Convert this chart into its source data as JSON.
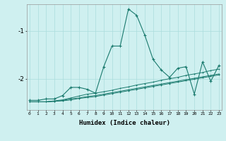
{
  "xlabel": "Humidex (Indice chaleur)",
  "bg_color": "#cff0f0",
  "line_color": "#1a7a6e",
  "grid_color": "#aadcdc",
  "x_ticks": [
    0,
    1,
    2,
    3,
    4,
    5,
    6,
    7,
    8,
    9,
    10,
    11,
    12,
    13,
    14,
    15,
    16,
    17,
    18,
    19,
    20,
    21,
    22,
    23
  ],
  "y_ticks": [
    -1,
    -2
  ],
  "xlim": [
    -0.3,
    23.3
  ],
  "ylim": [
    -2.65,
    -0.45
  ],
  "line1_x": [
    0,
    1,
    2,
    3,
    4,
    5,
    6,
    7,
    8,
    9,
    10,
    11,
    12,
    13,
    14,
    15,
    16,
    17,
    18,
    19,
    20,
    21,
    22,
    23
  ],
  "line1_y": [
    -2.45,
    -2.45,
    -2.42,
    -2.42,
    -2.35,
    -2.18,
    -2.18,
    -2.22,
    -2.3,
    -1.75,
    -1.32,
    -1.32,
    -0.55,
    -0.68,
    -1.1,
    -1.6,
    -1.82,
    -1.97,
    -1.78,
    -1.75,
    -2.32,
    -1.65,
    -2.05,
    -1.72
  ],
  "line2_x": [
    0,
    1,
    2,
    3,
    4,
    5,
    6,
    7,
    8,
    9,
    10,
    11,
    12,
    13,
    14,
    15,
    16,
    17,
    18,
    19,
    20,
    21,
    22,
    23
  ],
  "line2_y": [
    -2.48,
    -2.48,
    -2.48,
    -2.46,
    -2.44,
    -2.4,
    -2.36,
    -2.32,
    -2.3,
    -2.27,
    -2.24,
    -2.2,
    -2.17,
    -2.13,
    -2.1,
    -2.07,
    -2.03,
    -2.0,
    -1.97,
    -1.93,
    -1.9,
    -1.87,
    -1.83,
    -1.8
  ],
  "line3_x": [
    0,
    1,
    2,
    3,
    4,
    5,
    6,
    7,
    8,
    9,
    10,
    11,
    12,
    13,
    14,
    15,
    16,
    17,
    18,
    19,
    20,
    21,
    22,
    23
  ],
  "line3_y": [
    -2.48,
    -2.48,
    -2.48,
    -2.47,
    -2.46,
    -2.44,
    -2.41,
    -2.39,
    -2.37,
    -2.34,
    -2.31,
    -2.28,
    -2.25,
    -2.22,
    -2.19,
    -2.16,
    -2.13,
    -2.1,
    -2.07,
    -2.04,
    -2.01,
    -1.98,
    -1.95,
    -1.92
  ],
  "line4_x": [
    0,
    1,
    2,
    3,
    4,
    5,
    6,
    7,
    8,
    9,
    10,
    11,
    12,
    13,
    14,
    15,
    16,
    17,
    18,
    19,
    20,
    21,
    22,
    23
  ],
  "line4_y": [
    -2.48,
    -2.48,
    -2.48,
    -2.47,
    -2.45,
    -2.42,
    -2.4,
    -2.37,
    -2.35,
    -2.32,
    -2.29,
    -2.26,
    -2.23,
    -2.2,
    -2.17,
    -2.14,
    -2.11,
    -2.08,
    -2.05,
    -2.02,
    -1.99,
    -1.96,
    -1.93,
    -1.9
  ]
}
